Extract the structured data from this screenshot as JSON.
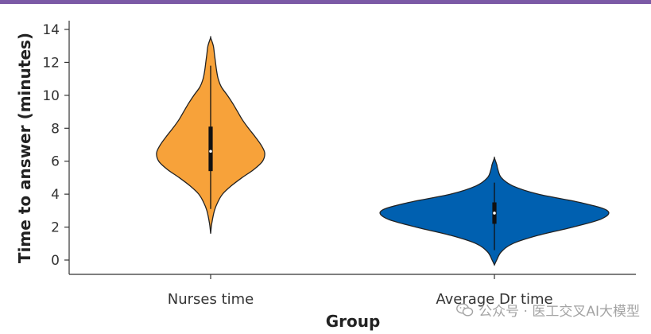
{
  "chart_data": {
    "type": "violin",
    "xlabel": "Group",
    "ylabel": "Time to answer (minutes)",
    "categories": [
      "Nurses time",
      "Average Dr time"
    ],
    "ylim": [
      -0.8,
      14.5
    ],
    "yticks": [
      0,
      2,
      4,
      6,
      8,
      10,
      12,
      14
    ],
    "grid": false,
    "series": [
      {
        "category": "Nurses time",
        "color": "#f7a23a",
        "range": [
          1.6,
          13.5
        ],
        "whisker": [
          3.1,
          11.8
        ],
        "q1": 5.4,
        "q3": 8.1,
        "median": 6.6,
        "density": [
          [
            1.6,
            0.0
          ],
          [
            2.2,
            0.02
          ],
          [
            3.0,
            0.07
          ],
          [
            3.5,
            0.13
          ],
          [
            4.0,
            0.22
          ],
          [
            4.5,
            0.38
          ],
          [
            5.0,
            0.58
          ],
          [
            5.5,
            0.8
          ],
          [
            6.0,
            0.96
          ],
          [
            6.5,
            1.0
          ],
          [
            7.0,
            0.93
          ],
          [
            7.5,
            0.82
          ],
          [
            8.0,
            0.7
          ],
          [
            8.5,
            0.59
          ],
          [
            9.0,
            0.5
          ],
          [
            9.5,
            0.41
          ],
          [
            10.0,
            0.31
          ],
          [
            10.5,
            0.2
          ],
          [
            11.0,
            0.14
          ],
          [
            11.5,
            0.11
          ],
          [
            12.0,
            0.09
          ],
          [
            12.5,
            0.07
          ],
          [
            13.0,
            0.05
          ],
          [
            13.5,
            0.0
          ]
        ]
      },
      {
        "category": "Average Dr time",
        "color": "#0060b0",
        "range": [
          -0.3,
          6.2
        ],
        "whisker": [
          0.6,
          4.7
        ],
        "q1": 2.2,
        "q3": 3.5,
        "median": 2.85,
        "density": [
          [
            -0.3,
            0.0
          ],
          [
            0.0,
            0.02
          ],
          [
            0.5,
            0.06
          ],
          [
            1.0,
            0.16
          ],
          [
            1.5,
            0.38
          ],
          [
            2.0,
            0.68
          ],
          [
            2.5,
            0.93
          ],
          [
            3.0,
            0.98
          ],
          [
            3.5,
            0.74
          ],
          [
            4.0,
            0.38
          ],
          [
            4.5,
            0.16
          ],
          [
            5.0,
            0.06
          ],
          [
            5.5,
            0.03
          ],
          [
            5.8,
            0.02
          ],
          [
            6.2,
            0.0
          ]
        ]
      }
    ]
  },
  "watermark": {
    "text": "公众号 · 医工交叉AI大模型",
    "icon": "wechat-icon"
  }
}
